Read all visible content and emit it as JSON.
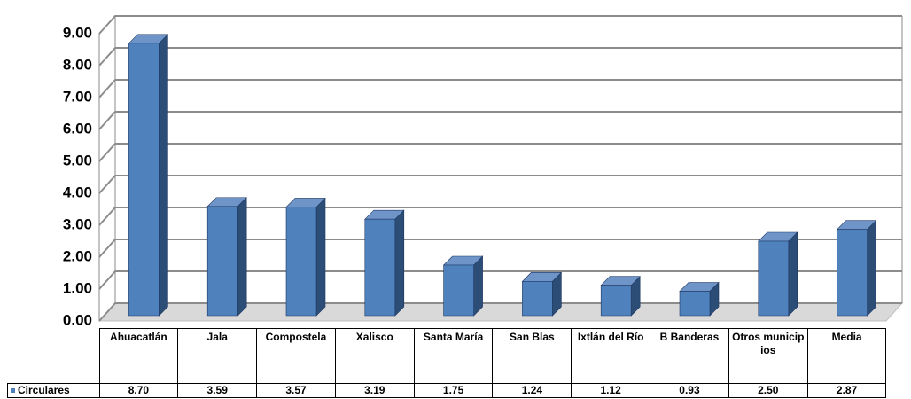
{
  "chart_data": {
    "type": "bar3d",
    "categories": [
      "Ahuacatlán",
      "Jala",
      "Compostela",
      "Xalisco",
      "Santa María",
      "San Blas",
      "Ixtlán del Río",
      "B Banderas",
      "Otros municipios",
      "Media"
    ],
    "series": [
      {
        "name": "Circulares",
        "color": "#4f81bd",
        "values": [
          8.7,
          3.59,
          3.57,
          3.19,
          1.75,
          1.24,
          1.12,
          0.93,
          2.5,
          2.87
        ],
        "value_labels": [
          "8.70",
          "3.59",
          "3.57",
          "3.19",
          "1.75",
          "1.24",
          "1.12",
          "0.93",
          "2.50",
          "2.87"
        ]
      }
    ],
    "ylim": [
      0,
      9
    ],
    "yticks": [
      {
        "value": 0,
        "label": "0.00"
      },
      {
        "value": 1,
        "label": "1.00"
      },
      {
        "value": 2,
        "label": "2.00"
      },
      {
        "value": 3,
        "label": "3.00"
      },
      {
        "value": 4,
        "label": "4.00"
      },
      {
        "value": 5,
        "label": "5.00"
      },
      {
        "value": 6,
        "label": "6.00"
      },
      {
        "value": 7,
        "label": "7.00"
      },
      {
        "value": 8,
        "label": "8.00"
      },
      {
        "value": 9,
        "label": "9.00"
      }
    ],
    "grid": true
  }
}
